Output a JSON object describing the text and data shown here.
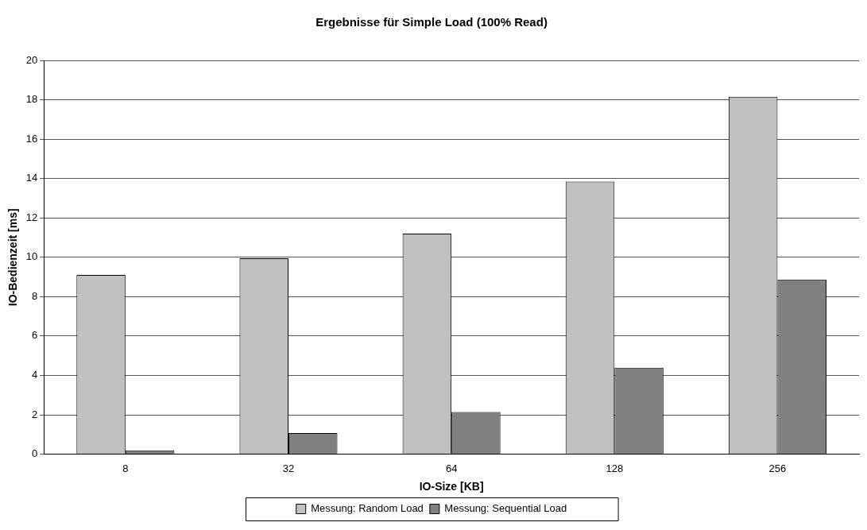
{
  "chart_data": {
    "type": "bar",
    "title": "Ergebnisse für Simple Load (100% Read)",
    "xlabel": "IO-Size [KB]",
    "ylabel": "IO-Bedienzeit [ms]",
    "categories": [
      "8",
      "32",
      "64",
      "128",
      "256"
    ],
    "series": [
      {
        "name": "Messung: Random Load",
        "color": "#c0c0c0",
        "values": [
          9.1,
          9.95,
          11.2,
          13.85,
          18.15
        ]
      },
      {
        "name": "Messung: Sequential Load",
        "color": "#808080",
        "values": [
          0.2,
          1.07,
          2.14,
          4.39,
          8.87
        ]
      }
    ],
    "ylim": [
      0,
      20
    ],
    "yticks": [
      0,
      2,
      4,
      6,
      8,
      10,
      12,
      14,
      16,
      18,
      20
    ],
    "grid": "y",
    "legend": "bottom"
  }
}
